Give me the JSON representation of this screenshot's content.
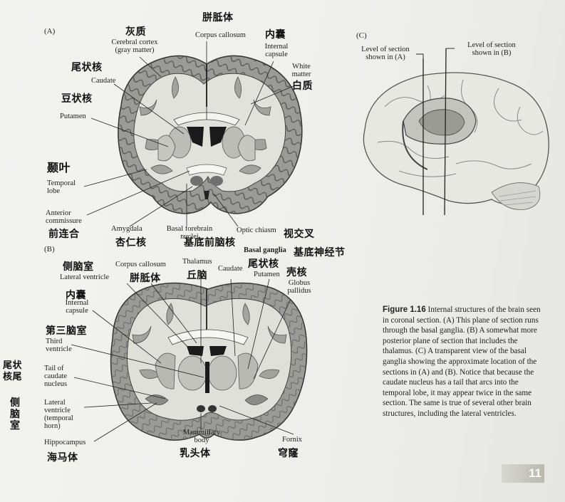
{
  "panels": {
    "a": "(A)",
    "b": "(B)",
    "c": "(C)"
  },
  "panel_a": {
    "corpus_callosum": "Corpus callosum",
    "cerebral_cortex": "Cerebral cortex",
    "cerebral_cortex_2": "(gray matter)",
    "internal_capsule": "Internal",
    "internal_capsule_2": "capsule",
    "white_matter": "White",
    "white_matter_2": "matter",
    "caudate": "Caudate",
    "putamen": "Putamen",
    "temporal_lobe": "Temporal",
    "temporal_lobe_2": "lobe",
    "anterior_commissure": "Anterior",
    "anterior_commissure_2": "commissure",
    "amygdala": "Amygdala",
    "basal_forebrain": "Basal forebrain",
    "basal_forebrain_2": "nuclei",
    "optic_chiasm": "Optic chiasm"
  },
  "panel_b": {
    "lateral_ventricle": "Lateral ventricle",
    "corpus_callosum": "Corpus callosum",
    "thalamus": "Thalamus",
    "basal_ganglia": "Basal ganglia",
    "caudate": "Caudate",
    "putamen": "Putamen",
    "globus_pallidus": "Globus",
    "globus_pallidus_2": "pallidus",
    "internal_capsule": "Internal",
    "internal_capsule_2": "capsule",
    "third_ventricle": "Third",
    "third_ventricle_2": "ventricle",
    "tail_caudate": "Tail of",
    "tail_caudate_2": "caudate",
    "tail_caudate_3": "nucleus",
    "lateral_ventricle_temporal": "Lateral",
    "lateral_ventricle_temporal_2": "ventricle",
    "lateral_ventricle_temporal_3": "(temporal",
    "lateral_ventricle_temporal_4": "horn)",
    "hippocampus": "Hippocampus",
    "mammillary_body": "Mammillary",
    "mammillary_body_2": "body",
    "fornix": "Fornix"
  },
  "panel_c": {
    "level_a": "Level of section",
    "level_a_2": "shown in (A)",
    "level_b": "Level of section",
    "level_b_2": "shown in (B)"
  },
  "handwritten": {
    "corpus_callosum_a": "胼胝体",
    "cortex": "灰质",
    "internal_capsule_a": "内囊",
    "white_matter": "白质",
    "caudate_a": "尾状核",
    "putamen_a": "豆状核",
    "temporal_lobe": "颞叶",
    "anterior_commissure": "前连合",
    "amygdala": "杏仁核",
    "basal_forebrain": "基底前脑核",
    "optic_chiasm": "视交叉",
    "basal_ganglia": "基底神经节",
    "lateral_ventricle": "侧脑室",
    "corpus_callosum_b": "胼胝体",
    "thalamus": "丘脑",
    "caudate_b": "尾状核",
    "putamen_b": "壳核",
    "internal_capsule_b": "内囊",
    "third_ventricle": "第三脑室",
    "tail_caudate": "尾状核尾",
    "lateral_ventricle_temporal": "侧脑室",
    "hippocampus": "海马体",
    "mammillary_body": "乳头体",
    "fornix": "穹窿"
  },
  "caption": {
    "figure_label": "Figure 1.16",
    "text": "Internal structures of the brain seen in coronal section. (A) This plane of section runs through the basal ganglia. (B) A somewhat more posterior plane of section that includes the thalamus. (C) A transparent view of the basal ganglia showing the approximate location of the sections in (A) and (B). Notice that because the caudate nucleus has a tail that arcs into the temporal lobe, it may appear twice in the same section. The same is true of several other brain structures, including the lateral ventricles."
  },
  "page_number": "11"
}
